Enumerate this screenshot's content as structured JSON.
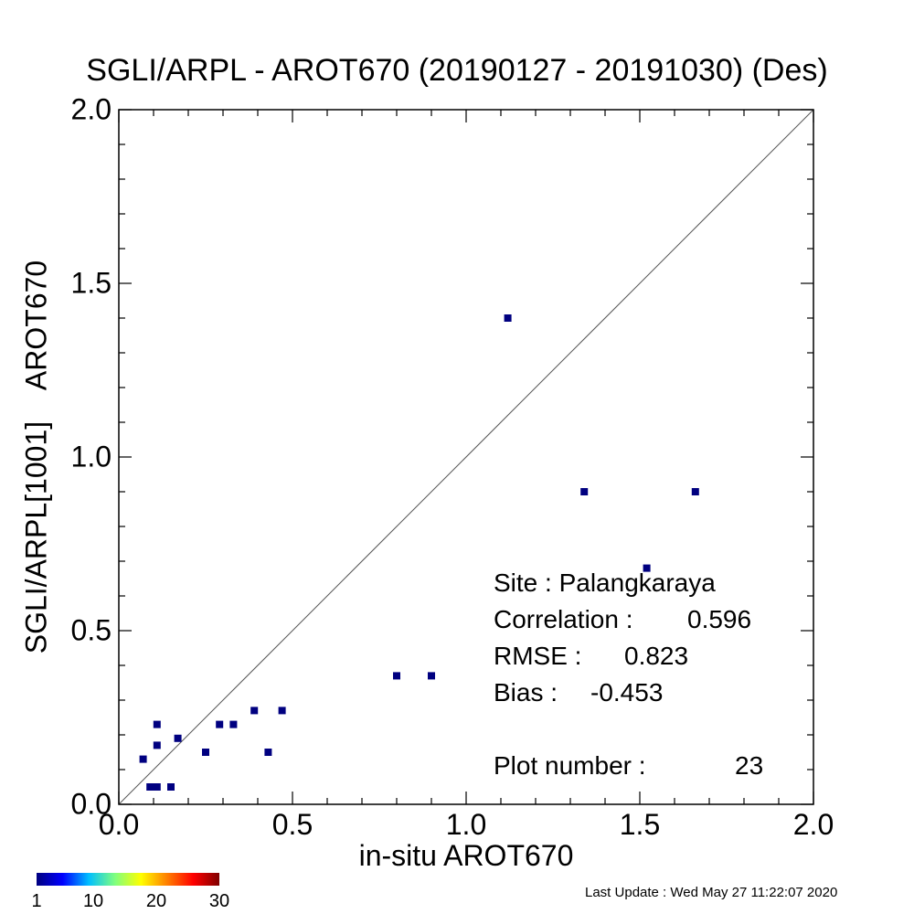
{
  "chart_data": {
    "type": "scatter",
    "title": "SGLI/ARPL - AROT670 (20190127 - 20191030) (Des)",
    "xlabel": "in-situ AROT670",
    "ylabel": "SGLI/ARPL[1001]    AROT670",
    "xlim": [
      0.0,
      2.0
    ],
    "ylim": [
      0.0,
      2.0
    ],
    "x_ticks": [
      "0.0",
      "0.5",
      "1.0",
      "1.5",
      "2.0"
    ],
    "y_ticks": [
      "0.0",
      "0.5",
      "1.0",
      "1.5",
      "2.0"
    ],
    "reference_line": "1:1",
    "grid": false,
    "point_color": "#000080",
    "points": [
      {
        "x": 0.07,
        "y": 0.13
      },
      {
        "x": 0.09,
        "y": 0.05
      },
      {
        "x": 0.11,
        "y": 0.05
      },
      {
        "x": 0.11,
        "y": 0.17
      },
      {
        "x": 0.11,
        "y": 0.23
      },
      {
        "x": 0.15,
        "y": 0.05
      },
      {
        "x": 0.17,
        "y": 0.19
      },
      {
        "x": 0.25,
        "y": 0.15
      },
      {
        "x": 0.29,
        "y": 0.23
      },
      {
        "x": 0.33,
        "y": 0.23
      },
      {
        "x": 0.39,
        "y": 0.27
      },
      {
        "x": 0.43,
        "y": 0.15
      },
      {
        "x": 0.47,
        "y": 0.27
      },
      {
        "x": 0.8,
        "y": 0.37
      },
      {
        "x": 0.9,
        "y": 0.37
      },
      {
        "x": 1.12,
        "y": 1.4
      },
      {
        "x": 1.34,
        "y": 0.9
      },
      {
        "x": 1.52,
        "y": 0.68
      },
      {
        "x": 1.66,
        "y": 0.9
      }
    ],
    "annotations": {
      "site": "Site : Palangkaraya",
      "correlation_label": "Correlation :",
      "correlation_value": "0.596",
      "rmse_label": "RMSE :",
      "rmse_value": "0.823",
      "bias_label": "Bias :",
      "bias_value": "-0.453",
      "plot_number_label": "Plot number :",
      "plot_number_value": "23"
    }
  },
  "colorbar": {
    "ticks": [
      "1",
      "10",
      "20",
      "30"
    ],
    "range": [
      1,
      30
    ],
    "colors": [
      "#00007f",
      "#0000ff",
      "#00bfff",
      "#7fff7f",
      "#ffff00",
      "#ff7f00",
      "#ff0000",
      "#7f0000"
    ]
  },
  "footer": "Last Update : Wed May 27 11:22:07 2020"
}
